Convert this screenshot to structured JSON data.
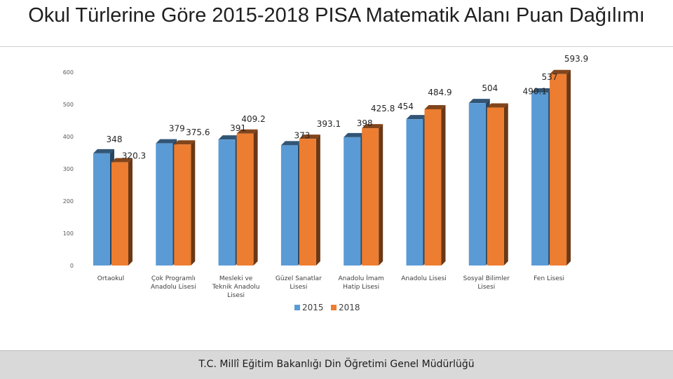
{
  "title": "Okul Türlerine Göre 2015-2018 PISA Matematik Alanı Puan Dağılımı",
  "footer": "T.C. Millî Eğitim Bakanlığı Din Öğretimi Genel Müdürlüğü",
  "chart_data": {
    "type": "bar",
    "categories": [
      "Ortaokul",
      "Çok Programlı Anadolu Lisesi",
      "Mesleki ve Teknik Anadolu Lisesi",
      "Güzel Sanatlar Lisesi",
      "Anadolu İmam Hatip Lisesi",
      "Anadolu Lisesi",
      "Sosyal Bilimler Lisesi",
      "Fen Lisesi"
    ],
    "series": [
      {
        "name": "2015",
        "values": [
          348,
          379,
          391,
          373,
          398,
          454,
          504,
          537
        ],
        "color": "#5b9bd5"
      },
      {
        "name": "2018",
        "values": [
          320.3,
          375.6,
          409.2,
          393.1,
          425.8,
          484.9,
          490.1,
          593.9
        ],
        "color": "#ed7d31"
      }
    ],
    "ylim": [
      0,
      600
    ],
    "yticks": [
      0,
      100,
      200,
      300,
      400,
      500,
      600
    ],
    "grid": false,
    "legend": "bottom",
    "bar_style": "3d"
  }
}
